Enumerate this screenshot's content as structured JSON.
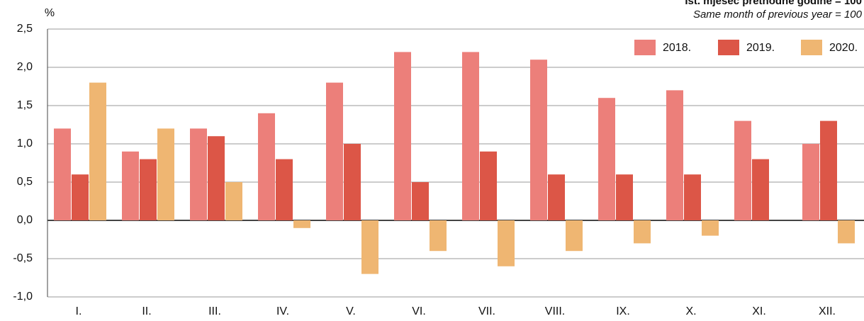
{
  "chart_data": {
    "type": "bar",
    "subtitle": [
      "Ist. mjesec prethodne godine = 100",
      "Same month of previous year = 100"
    ],
    "y_label": "%",
    "categories": [
      "I.",
      "II.",
      "III.",
      "IV.",
      "V.",
      "VI.",
      "VII.",
      "VIII.",
      "IX.",
      "X.",
      "XI.",
      "XII."
    ],
    "series": [
      {
        "name": "2018.",
        "color": "#ec7f7a",
        "values": [
          1.2,
          0.9,
          1.2,
          1.4,
          1.8,
          2.2,
          2.2,
          2.1,
          1.6,
          1.7,
          1.3,
          1.0
        ]
      },
      {
        "name": "2019.",
        "color": "#dc5647",
        "values": [
          0.6,
          0.8,
          1.1,
          0.8,
          1.0,
          0.5,
          0.9,
          0.6,
          0.6,
          0.6,
          0.8,
          1.3
        ]
      },
      {
        "name": "2020.",
        "color": "#efb672",
        "values": [
          1.8,
          1.2,
          0.5,
          -0.1,
          -0.7,
          -0.4,
          -0.6,
          -0.4,
          -0.3,
          -0.2,
          null,
          -0.3
        ]
      }
    ],
    "ylim": [
      -1.0,
      2.5
    ],
    "yticks": [
      {
        "value": -1.0,
        "label": "-1,0"
      },
      {
        "value": -0.5,
        "label": "-0,5"
      },
      {
        "value": 0.0,
        "label": "0,0"
      },
      {
        "value": 0.5,
        "label": "0,5"
      },
      {
        "value": 1.0,
        "label": "1,0"
      },
      {
        "value": 1.5,
        "label": "1,5"
      },
      {
        "value": 2.0,
        "label": "2,0"
      },
      {
        "value": 2.5,
        "label": "2,5"
      }
    ],
    "grid": true,
    "legend": "top-right"
  }
}
